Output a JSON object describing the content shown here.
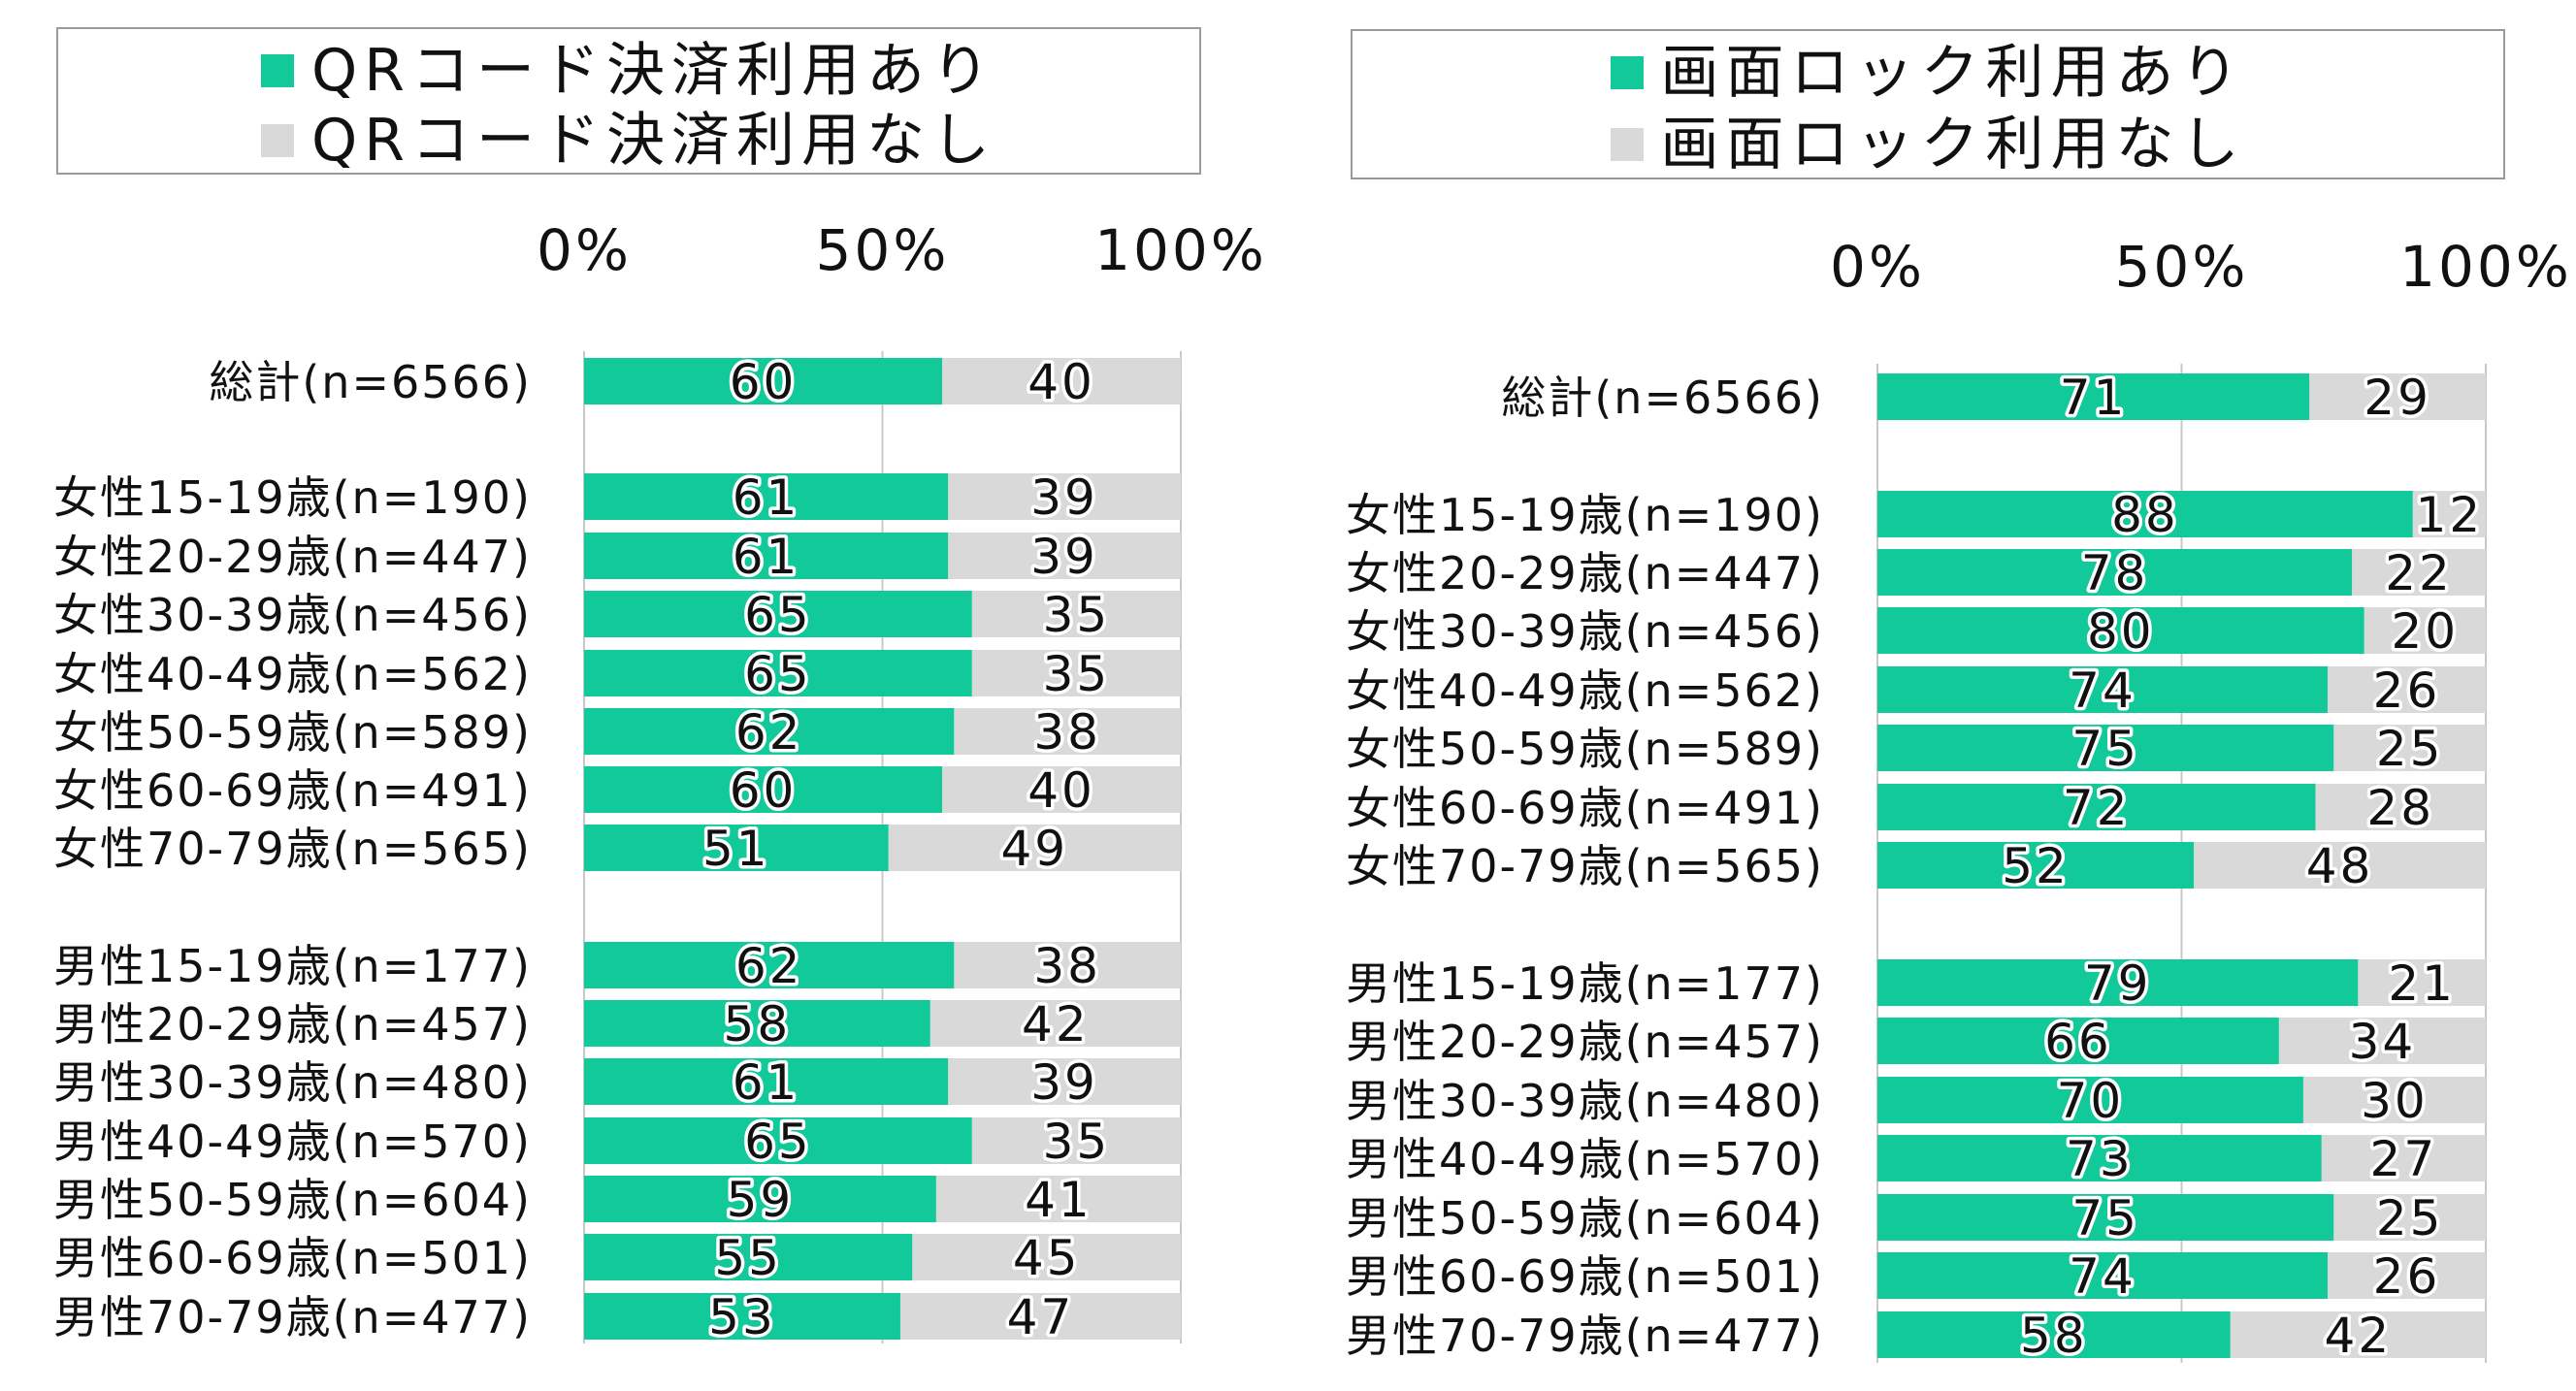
{
  "colors": {
    "with": "#12c999",
    "without": "#d9d9d9",
    "grid": "#c8c8c8"
  },
  "chart_data": [
    {
      "type": "bar",
      "stacked": true,
      "orientation": "horizontal",
      "xlim": [
        0,
        100
      ],
      "x_ticks": [
        "0%",
        "50%",
        "100%"
      ],
      "grid": true,
      "legend": "top",
      "categories": [
        "総計(n=6566)",
        "女性15-19歳(n=190)",
        "女性20-29歳(n=447)",
        "女性30-39歳(n=456)",
        "女性40-49歳(n=562)",
        "女性50-59歳(n=589)",
        "女性60-69歳(n=491)",
        "女性70-79歳(n=565)",
        "男性15-19歳(n=177)",
        "男性20-29歳(n=457)",
        "男性30-39歳(n=480)",
        "男性40-49歳(n=570)",
        "男性50-59歳(n=604)",
        "男性60-69歳(n=501)",
        "男性70-79歳(n=477)"
      ],
      "series": [
        {
          "name": "QRコード決済利用あり",
          "color": "#12c999",
          "values": [
            60,
            61,
            61,
            65,
            65,
            62,
            60,
            51,
            62,
            58,
            61,
            65,
            59,
            55,
            53
          ]
        },
        {
          "name": "QRコード決済利用なし",
          "color": "#d9d9d9",
          "values": [
            40,
            39,
            39,
            35,
            35,
            38,
            40,
            49,
            38,
            42,
            39,
            35,
            41,
            45,
            47
          ]
        }
      ]
    },
    {
      "type": "bar",
      "stacked": true,
      "orientation": "horizontal",
      "xlim": [
        0,
        100
      ],
      "x_ticks": [
        "0%",
        "50%",
        "100%"
      ],
      "grid": true,
      "legend": "top",
      "categories": [
        "総計(n=6566)",
        "女性15-19歳(n=190)",
        "女性20-29歳(n=447)",
        "女性30-39歳(n=456)",
        "女性40-49歳(n=562)",
        "女性50-59歳(n=589)",
        "女性60-69歳(n=491)",
        "女性70-79歳(n=565)",
        "男性15-19歳(n=177)",
        "男性20-29歳(n=457)",
        "男性30-39歳(n=480)",
        "男性40-49歳(n=570)",
        "男性50-59歳(n=604)",
        "男性60-69歳(n=501)",
        "男性70-79歳(n=477)"
      ],
      "series": [
        {
          "name": "画面ロック利用あり",
          "color": "#12c999",
          "values": [
            71,
            88,
            78,
            80,
            74,
            75,
            72,
            52,
            79,
            66,
            70,
            73,
            75,
            74,
            58
          ]
        },
        {
          "name": "画面ロック利用なし",
          "color": "#d9d9d9",
          "values": [
            29,
            12,
            22,
            20,
            26,
            25,
            28,
            48,
            21,
            34,
            30,
            27,
            25,
            26,
            42
          ]
        }
      ]
    }
  ]
}
